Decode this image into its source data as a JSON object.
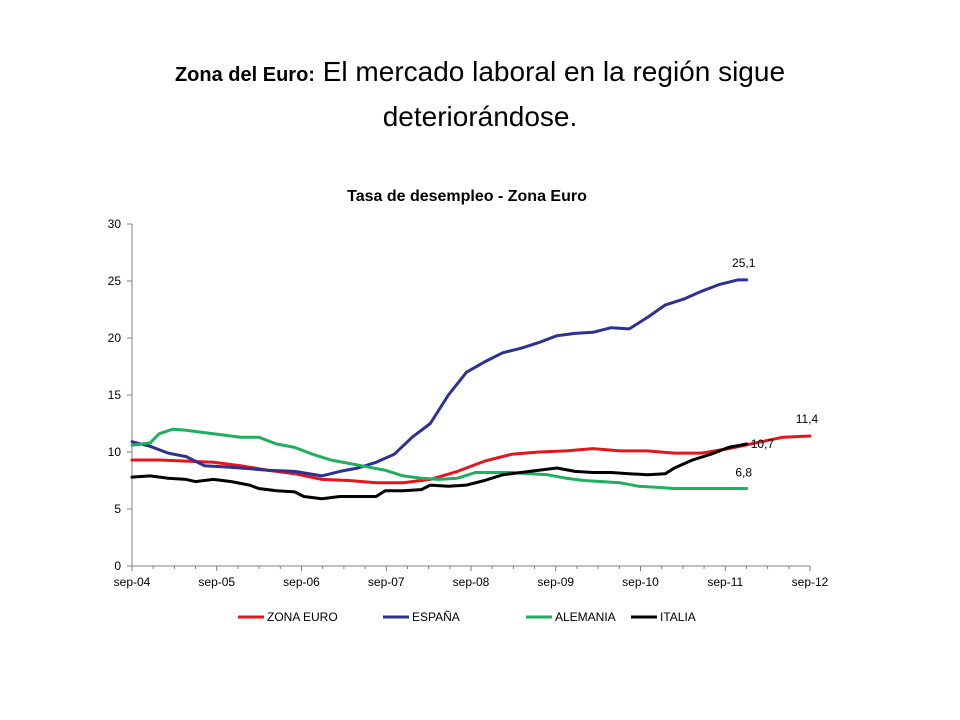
{
  "slide": {
    "title_bold": "Zona del Euro:",
    "title_main": " El mercado laboral en la región sigue",
    "title_line2": "deteriorándose",
    "title_end": "."
  },
  "chart_data": {
    "type": "line",
    "title": "Tasa de desempleo - Zona Euro",
    "xlabel": "",
    "ylabel": "",
    "x_ticks": [
      "sep-04",
      "sep-05",
      "sep-06",
      "sep-07",
      "sep-08",
      "sep-09",
      "sep-10",
      "sep-11",
      "sep-12"
    ],
    "y_ticks": [
      0,
      5,
      10,
      15,
      20,
      25,
      30
    ],
    "ylim": [
      0,
      30
    ],
    "x_range_months": [
      0,
      96
    ],
    "grid": false,
    "legend_position": "bottom",
    "series": [
      {
        "name": "ZONA EURO",
        "color": "#e8141b",
        "points": [
          [
            0,
            9.3
          ],
          [
            6,
            9.3
          ],
          [
            12,
            9.2
          ],
          [
            18,
            9.1
          ],
          [
            24,
            8.8
          ],
          [
            30,
            8.4
          ],
          [
            36,
            8.1
          ],
          [
            42,
            7.6
          ],
          [
            48,
            7.5
          ],
          [
            54,
            7.3
          ],
          [
            60,
            7.3
          ],
          [
            66,
            7.6
          ],
          [
            72,
            8.3
          ],
          [
            78,
            9.2
          ],
          [
            84,
            9.8
          ],
          [
            90,
            10.0
          ],
          [
            96,
            10.1
          ],
          [
            102,
            10.3
          ],
          [
            108,
            10.1
          ],
          [
            114,
            10.1
          ],
          [
            120,
            9.9
          ],
          [
            126,
            9.9
          ],
          [
            132,
            10.3
          ],
          [
            138,
            10.8
          ],
          [
            144,
            11.3
          ],
          [
            150,
            11.4
          ]
        ],
        "end_label": "11,4"
      },
      {
        "name": "ESPAÑA",
        "color": "#2e3192",
        "points": [
          [
            0,
            10.9
          ],
          [
            4,
            10.5
          ],
          [
            8,
            9.9
          ],
          [
            12,
            9.6
          ],
          [
            16,
            8.8
          ],
          [
            20,
            8.7
          ],
          [
            24,
            8.6
          ],
          [
            30,
            8.4
          ],
          [
            36,
            8.3
          ],
          [
            42,
            7.9
          ],
          [
            46,
            8.3
          ],
          [
            50,
            8.6
          ],
          [
            54,
            9.1
          ],
          [
            58,
            9.8
          ],
          [
            62,
            11.3
          ],
          [
            66,
            12.5
          ],
          [
            70,
            15.0
          ],
          [
            74,
            17.0
          ],
          [
            78,
            17.9
          ],
          [
            82,
            18.7
          ],
          [
            86,
            19.1
          ],
          [
            90,
            19.6
          ],
          [
            94,
            20.2
          ],
          [
            98,
            20.4
          ],
          [
            102,
            20.5
          ],
          [
            106,
            20.9
          ],
          [
            110,
            20.8
          ],
          [
            114,
            21.8
          ],
          [
            118,
            22.9
          ],
          [
            122,
            23.4
          ],
          [
            126,
            24.1
          ],
          [
            130,
            24.7
          ],
          [
            134,
            25.1
          ],
          [
            136,
            25.1
          ]
        ],
        "end_label": "25,1"
      },
      {
        "name": "ALEMANIA",
        "color": "#1db05f",
        "points": [
          [
            0,
            10.6
          ],
          [
            4,
            10.8
          ],
          [
            6,
            11.6
          ],
          [
            9,
            12.0
          ],
          [
            12,
            11.9
          ],
          [
            16,
            11.7
          ],
          [
            20,
            11.5
          ],
          [
            24,
            11.3
          ],
          [
            28,
            11.3
          ],
          [
            32,
            10.7
          ],
          [
            36,
            10.4
          ],
          [
            40,
            9.8
          ],
          [
            44,
            9.3
          ],
          [
            48,
            9.0
          ],
          [
            52,
            8.7
          ],
          [
            56,
            8.4
          ],
          [
            60,
            7.9
          ],
          [
            64,
            7.7
          ],
          [
            68,
            7.6
          ],
          [
            72,
            7.7
          ],
          [
            76,
            8.2
          ],
          [
            80,
            8.2
          ],
          [
            84,
            8.2
          ],
          [
            88,
            8.1
          ],
          [
            92,
            8.0
          ],
          [
            96,
            7.7
          ],
          [
            100,
            7.5
          ],
          [
            104,
            7.4
          ],
          [
            108,
            7.3
          ],
          [
            112,
            7.0
          ],
          [
            116,
            6.9
          ],
          [
            120,
            6.8
          ],
          [
            126,
            6.8
          ],
          [
            130,
            6.8
          ],
          [
            136,
            6.8
          ]
        ],
        "end_label": "6,8"
      },
      {
        "name": "ITALIA",
        "color": "#000000",
        "points": [
          [
            0,
            7.8
          ],
          [
            4,
            7.9
          ],
          [
            8,
            7.7
          ],
          [
            12,
            7.6
          ],
          [
            14,
            7.4
          ],
          [
            18,
            7.6
          ],
          [
            22,
            7.4
          ],
          [
            26,
            7.1
          ],
          [
            28,
            6.8
          ],
          [
            32,
            6.6
          ],
          [
            36,
            6.5
          ],
          [
            38,
            6.1
          ],
          [
            42,
            5.9
          ],
          [
            46,
            6.1
          ],
          [
            50,
            6.1
          ],
          [
            54,
            6.1
          ],
          [
            56,
            6.6
          ],
          [
            60,
            6.6
          ],
          [
            64,
            6.7
          ],
          [
            66,
            7.1
          ],
          [
            70,
            7.0
          ],
          [
            74,
            7.1
          ],
          [
            78,
            7.5
          ],
          [
            82,
            8.0
          ],
          [
            86,
            8.2
          ],
          [
            90,
            8.4
          ],
          [
            94,
            8.6
          ],
          [
            98,
            8.3
          ],
          [
            102,
            8.2
          ],
          [
            106,
            8.2
          ],
          [
            110,
            8.1
          ],
          [
            114,
            8.0
          ],
          [
            118,
            8.1
          ],
          [
            120,
            8.6
          ],
          [
            124,
            9.3
          ],
          [
            128,
            9.8
          ],
          [
            132,
            10.4
          ],
          [
            136,
            10.7
          ]
        ],
        "end_label": "10,7"
      }
    ]
  }
}
